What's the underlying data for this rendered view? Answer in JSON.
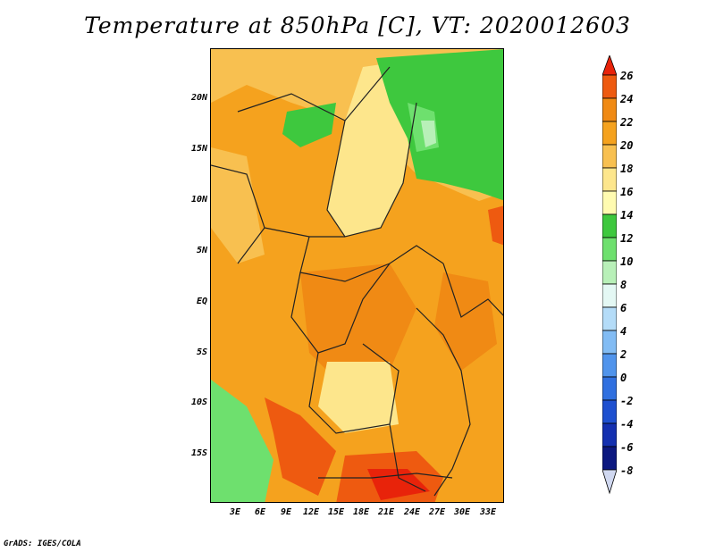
{
  "title": "Temperature at 850hPa [C], VT: 2020012603",
  "credit": "GrADS: IGES/COLA",
  "colors": {
    "c26": "#e8230a",
    "c24": "#ee5a10",
    "c22": "#f08a14",
    "c20": "#f5a21e",
    "c18": "#f8c050",
    "c16": "#fde68c",
    "c14": "#fffbb0",
    "c12": "#3ec83e",
    "c10": "#6ee06e",
    "c8": "#b8f0b8",
    "c6": "#e4f8f4",
    "c4": "#b4dcf8",
    "c2": "#82bcf4",
    "c0": "#5094ec",
    "cm2": "#3070e0",
    "cm4": "#1e50d0",
    "cm6": "#1430b0",
    "cm8": "#0c1880"
  },
  "map": {
    "lat_ticks": [
      "20N",
      "15N",
      "10N",
      "5N",
      "EQ",
      "5S",
      "10S",
      "15S"
    ],
    "lon_ticks": [
      "3E",
      "6E",
      "9E",
      "12E",
      "15E",
      "18E",
      "21E",
      "24E",
      "27E",
      "30E",
      "33E"
    ]
  },
  "colorbar": {
    "labels": [
      "26",
      "24",
      "22",
      "20",
      "18",
      "16",
      "14",
      "12",
      "10",
      "8",
      "6",
      "4",
      "2",
      "0",
      "-2",
      "-4",
      "-6",
      "-8"
    ]
  }
}
